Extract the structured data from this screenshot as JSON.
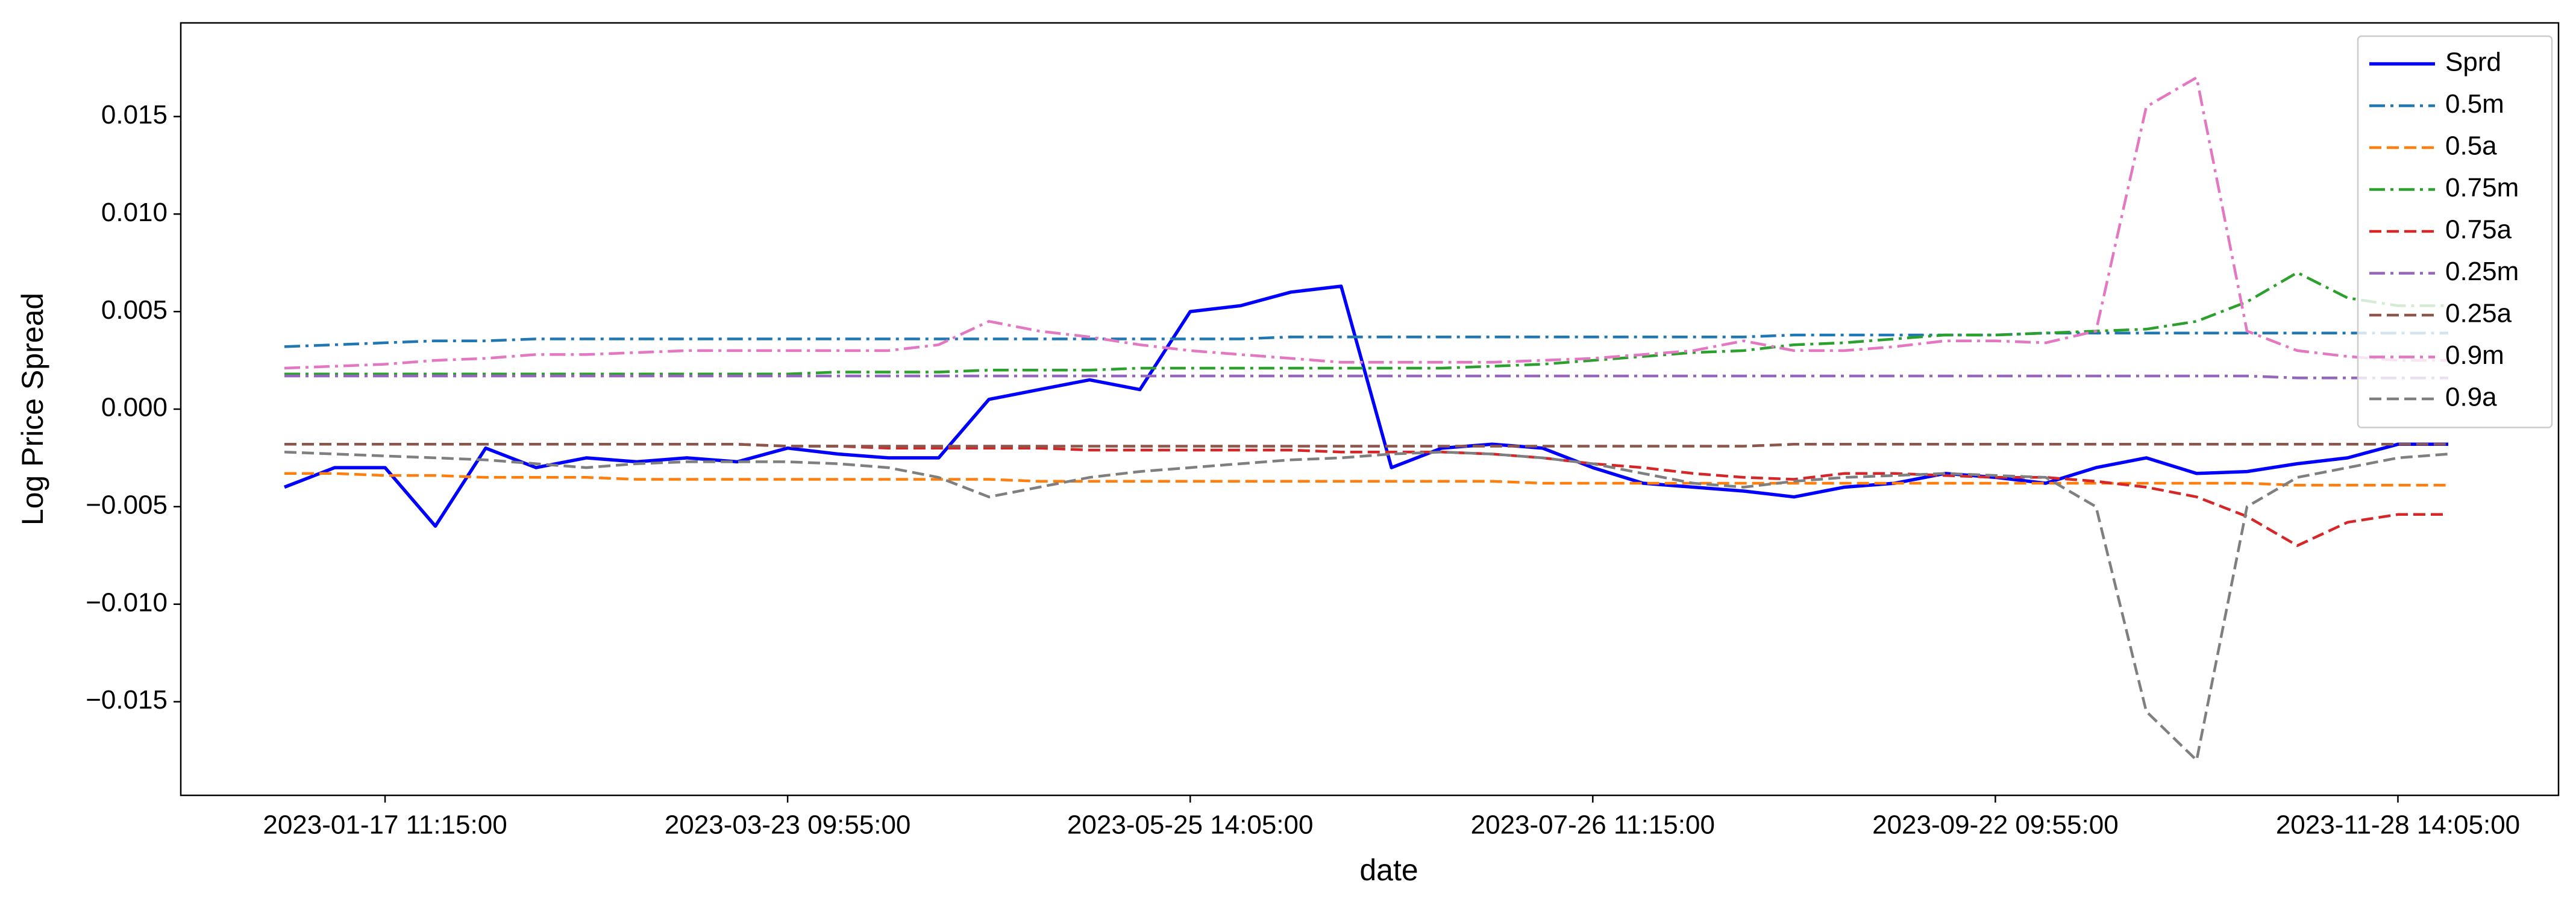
{
  "chart_data": {
    "type": "line",
    "xlabel": "date",
    "ylabel": "Log Price Spread",
    "categories": [
      null,
      null,
      "2023-01-17 11:15:00",
      null,
      null,
      null,
      null,
      null,
      null,
      null,
      "2023-03-23 09:55:00",
      null,
      null,
      null,
      null,
      null,
      null,
      null,
      "2023-05-25 14:05:00",
      null,
      null,
      null,
      null,
      null,
      null,
      null,
      "2023-07-26 11:15:00",
      null,
      null,
      null,
      null,
      null,
      null,
      null,
      "2023-09-22 09:55:00",
      null,
      null,
      null,
      null,
      null,
      null,
      null,
      "2023-11-28 14:05:00",
      null
    ],
    "ylim": [
      -0.0198,
      0.0198
    ],
    "yticks": [
      {
        "value": -0.015,
        "label": "−0.015"
      },
      {
        "value": -0.01,
        "label": "−0.010"
      },
      {
        "value": -0.005,
        "label": "−0.005"
      },
      {
        "value": 0,
        "label": "0.000"
      },
      0.005,
      {
        "value": 0.01,
        "label": "0.010"
      },
      0.015
    ],
    "legend": "upper right",
    "series": [
      {
        "name": "Sprd",
        "color": "#0000ff",
        "linestyle": "solid",
        "values": [
          -0.004,
          -0.003,
          -0.003,
          -0.006,
          -0.002,
          -0.003,
          -0.0025,
          -0.0027,
          -0.0025,
          -0.0027,
          -0.002,
          -0.0023,
          -0.0025,
          -0.0025,
          0.0005,
          0.001,
          0.0015,
          0.001,
          0.005,
          0.0053,
          0.006,
          0.0063,
          -0.003,
          -0.002,
          -0.0018,
          -0.002,
          -0.003,
          -0.0038,
          -0.004,
          -0.0042,
          -0.0045,
          -0.004,
          -0.0038,
          -0.0033,
          -0.0035,
          -0.0038,
          -0.003,
          -0.0025,
          -0.0033,
          -0.0032,
          -0.0028,
          -0.0025,
          -0.0018,
          -0.0018
        ]
      },
      {
        "name": "0.5m",
        "color": "#1f77b4",
        "linestyle": "dashdot",
        "values": [
          0.0032,
          0.0033,
          0.0034,
          0.0035,
          0.0035,
          0.0036,
          0.0036,
          0.0036,
          0.0036,
          0.0036,
          0.0036,
          0.0036,
          0.0036,
          0.0036,
          0.0036,
          0.0036,
          0.0036,
          0.0036,
          0.0036,
          0.0036,
          0.0037,
          0.0037,
          0.0037,
          0.0037,
          0.0037,
          0.0037,
          0.0037,
          0.0037,
          0.0037,
          0.0037,
          0.0038,
          0.0038,
          0.0038,
          0.0038,
          0.0038,
          0.0039,
          0.0039,
          0.0039,
          0.0039,
          0.0039,
          0.0039,
          0.0039,
          0.0039,
          0.0039
        ]
      },
      {
        "name": "0.5a",
        "color": "#ff7f0e",
        "linestyle": "dashed",
        "values": [
          -0.0033,
          -0.0033,
          -0.0034,
          -0.0034,
          -0.0035,
          -0.0035,
          -0.0035,
          -0.0036,
          -0.0036,
          -0.0036,
          -0.0036,
          -0.0036,
          -0.0036,
          -0.0036,
          -0.0036,
          -0.0037,
          -0.0037,
          -0.0037,
          -0.0037,
          -0.0037,
          -0.0037,
          -0.0037,
          -0.0037,
          -0.0037,
          -0.0037,
          -0.0038,
          -0.0038,
          -0.0038,
          -0.0038,
          -0.0038,
          -0.0038,
          -0.0038,
          -0.0038,
          -0.0038,
          -0.0038,
          -0.0038,
          -0.0038,
          -0.0038,
          -0.0038,
          -0.0038,
          -0.0039,
          -0.0039,
          -0.0039,
          -0.0039
        ]
      },
      {
        "name": "0.75m",
        "color": "#2ca02c",
        "linestyle": "dashdot",
        "values": [
          0.0018,
          0.0018,
          0.0018,
          0.0018,
          0.0018,
          0.0018,
          0.0018,
          0.0018,
          0.0018,
          0.0018,
          0.0018,
          0.0019,
          0.0019,
          0.0019,
          0.002,
          0.002,
          0.002,
          0.0021,
          0.0021,
          0.0021,
          0.0021,
          0.0021,
          0.0021,
          0.0021,
          0.0022,
          0.0023,
          0.0025,
          0.0027,
          0.0029,
          0.003,
          0.0033,
          0.0034,
          0.0036,
          0.0038,
          0.0038,
          0.0039,
          0.004,
          0.0041,
          0.0045,
          0.0055,
          0.007,
          0.0057,
          0.0053,
          0.0053
        ]
      },
      {
        "name": "0.75a",
        "color": "#d62728",
        "linestyle": "dashed",
        "values": [
          -0.0018,
          -0.0018,
          -0.0018,
          -0.0018,
          -0.0018,
          -0.0018,
          -0.0018,
          -0.0018,
          -0.0018,
          -0.0018,
          -0.0019,
          -0.0019,
          -0.002,
          -0.002,
          -0.002,
          -0.002,
          -0.0021,
          -0.0021,
          -0.0021,
          -0.0021,
          -0.0021,
          -0.0022,
          -0.0022,
          -0.0022,
          -0.0023,
          -0.0025,
          -0.0028,
          -0.003,
          -0.0033,
          -0.0035,
          -0.0036,
          -0.0033,
          -0.0033,
          -0.0034,
          -0.0035,
          -0.0035,
          -0.0037,
          -0.004,
          -0.0045,
          -0.0055,
          -0.007,
          -0.0058,
          -0.0054,
          -0.0054
        ]
      },
      {
        "name": "0.25m",
        "color": "#9467bd",
        "linestyle": "dashdot",
        "values": [
          0.0017,
          0.0017,
          0.0017,
          0.0017,
          0.0017,
          0.0017,
          0.0017,
          0.0017,
          0.0017,
          0.0017,
          0.0017,
          0.0017,
          0.0017,
          0.0017,
          0.0017,
          0.0017,
          0.0017,
          0.0017,
          0.0017,
          0.0017,
          0.0017,
          0.0017,
          0.0017,
          0.0017,
          0.0017,
          0.0017,
          0.0017,
          0.0017,
          0.0017,
          0.0017,
          0.0017,
          0.0017,
          0.0017,
          0.0017,
          0.0017,
          0.0017,
          0.0017,
          0.0017,
          0.0017,
          0.0017,
          0.0016,
          0.0016,
          0.0016,
          0.0016
        ]
      },
      {
        "name": "0.25a",
        "color": "#8c564b",
        "linestyle": "dashed",
        "values": [
          -0.0018,
          -0.0018,
          -0.0018,
          -0.0018,
          -0.0018,
          -0.0018,
          -0.0018,
          -0.0018,
          -0.0018,
          -0.0018,
          -0.0019,
          -0.0019,
          -0.0019,
          -0.0019,
          -0.0019,
          -0.0019,
          -0.0019,
          -0.0019,
          -0.0019,
          -0.0019,
          -0.0019,
          -0.0019,
          -0.0019,
          -0.0019,
          -0.0019,
          -0.0019,
          -0.0019,
          -0.0019,
          -0.0019,
          -0.0019,
          -0.0018,
          -0.0018,
          -0.0018,
          -0.0018,
          -0.0018,
          -0.0018,
          -0.0018,
          -0.0018,
          -0.0018,
          -0.0018,
          -0.0018,
          -0.0018,
          -0.0018,
          -0.0018
        ]
      },
      {
        "name": "0.9m",
        "color": "#e377c2",
        "linestyle": "dashdot",
        "values": [
          0.0021,
          0.0022,
          0.0023,
          0.0025,
          0.0026,
          0.0028,
          0.0028,
          0.0029,
          0.003,
          0.003,
          0.003,
          0.003,
          0.003,
          0.0033,
          0.0045,
          0.004,
          0.0037,
          0.0033,
          0.003,
          0.0028,
          0.0026,
          0.0024,
          0.0024,
          0.0024,
          0.0024,
          0.0025,
          0.0026,
          0.0028,
          0.003,
          0.0035,
          0.003,
          0.003,
          0.0032,
          0.0035,
          0.0035,
          0.0034,
          0.004,
          0.0155,
          0.017,
          0.004,
          0.003,
          0.0027,
          0.0025,
          0.0025
        ]
      },
      {
        "name": "0.9a",
        "color": "#7f7f7f",
        "linestyle": "dashed",
        "values": [
          -0.0022,
          -0.0023,
          -0.0024,
          -0.0025,
          -0.0026,
          -0.0028,
          -0.003,
          -0.0028,
          -0.0027,
          -0.0027,
          -0.0027,
          -0.0028,
          -0.003,
          -0.0035,
          -0.0045,
          -0.004,
          -0.0035,
          -0.0032,
          -0.003,
          -0.0028,
          -0.0026,
          -0.0025,
          -0.0023,
          -0.0022,
          -0.0023,
          -0.0025,
          -0.0028,
          -0.0033,
          -0.0038,
          -0.004,
          -0.0037,
          -0.0035,
          -0.0034,
          -0.0033,
          -0.0034,
          -0.0035,
          -0.005,
          -0.0155,
          -0.018,
          -0.005,
          -0.0035,
          -0.003,
          -0.0025,
          -0.0023
        ]
      }
    ]
  }
}
